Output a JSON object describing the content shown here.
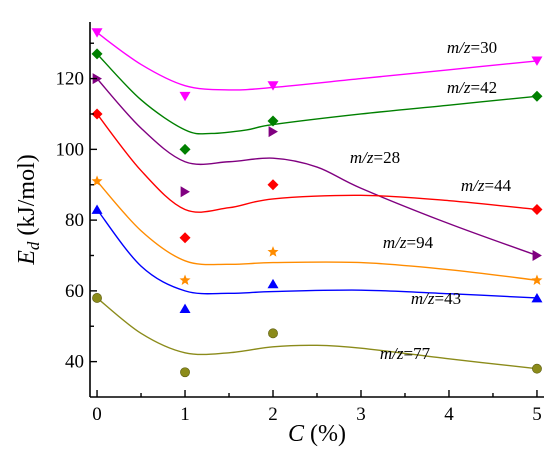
{
  "chart_data": {
    "type": "scatter",
    "xlabel_var": "C",
    "xlabel_unit": " (%)",
    "ylabel_var": "E",
    "ylabel_sub": "d",
    "ylabel_unit": "  (kJ/mol)",
    "xticks": [
      0,
      1,
      2,
      3,
      4,
      5
    ],
    "yticks": [
      40,
      60,
      80,
      100,
      120
    ],
    "xlim": [
      -0.08,
      5.08
    ],
    "ylim": [
      30,
      136
    ],
    "grid": false,
    "legend": "none",
    "x": [
      0,
      1,
      2,
      5
    ],
    "series": [
      {
        "prefix": "m/z",
        "suffix": "=30",
        "color": "#ff00ff",
        "marker": "triangle-down",
        "values": [
          133,
          115,
          118,
          125
        ],
        "fit": [
          [
            0,
            133
          ],
          [
            0.5,
            124
          ],
          [
            1,
            118
          ],
          [
            1.5,
            116.8
          ],
          [
            2,
            117.5
          ],
          [
            3,
            120
          ],
          [
            4,
            122.5
          ],
          [
            5,
            125
          ]
        ]
      },
      {
        "prefix": "m/z",
        "suffix": "=42",
        "color": "#008000",
        "marker": "diamond",
        "values": [
          127,
          100,
          108,
          115
        ],
        "fit": [
          [
            0,
            127
          ],
          [
            0.5,
            114
          ],
          [
            1,
            105.5
          ],
          [
            1.3,
            104.5
          ],
          [
            1.7,
            105.5
          ],
          [
            2,
            107
          ],
          [
            3,
            110
          ],
          [
            4,
            112.5
          ],
          [
            5,
            115
          ]
        ]
      },
      {
        "prefix": "m/z",
        "suffix": "=28",
        "color": "#800080",
        "marker": "triangle-right",
        "values": [
          120,
          88,
          105,
          70
        ],
        "fit": [
          [
            0,
            120
          ],
          [
            0.5,
            106
          ],
          [
            1,
            96.5
          ],
          [
            1.5,
            96.5
          ],
          [
            2,
            97.5
          ],
          [
            2.5,
            95
          ],
          [
            3,
            89
          ],
          [
            4,
            79
          ],
          [
            5,
            70
          ]
        ]
      },
      {
        "prefix": "m/z",
        "suffix": "=44",
        "color": "#ff0000",
        "marker": "diamond",
        "values": [
          110,
          75,
          90,
          83
        ],
        "fit": [
          [
            0,
            110
          ],
          [
            0.5,
            94
          ],
          [
            1,
            83
          ],
          [
            1.5,
            83.5
          ],
          [
            2,
            86
          ],
          [
            3,
            87
          ],
          [
            4,
            85.5
          ],
          [
            5,
            83
          ]
        ]
      },
      {
        "prefix": "m/z",
        "suffix": "=94",
        "color": "#ff8c00",
        "marker": "star",
        "values": [
          91,
          63,
          71,
          63
        ],
        "fit": [
          [
            0,
            91
          ],
          [
            0.5,
            77
          ],
          [
            1,
            68.5
          ],
          [
            1.5,
            67.5
          ],
          [
            2,
            68
          ],
          [
            3,
            68
          ],
          [
            4,
            66
          ],
          [
            5,
            63
          ]
        ]
      },
      {
        "prefix": "m/z",
        "suffix": "=43",
        "color": "#0000ff",
        "marker": "triangle-up",
        "values": [
          83,
          55,
          62,
          58
        ],
        "fit": [
          [
            0,
            83
          ],
          [
            0.5,
            67
          ],
          [
            1,
            60
          ],
          [
            1.5,
            59.3
          ],
          [
            2,
            59.8
          ],
          [
            3,
            60.2
          ],
          [
            4,
            59.2
          ],
          [
            5,
            58
          ]
        ]
      },
      {
        "prefix": "m/z",
        "suffix": "=77",
        "color": "#8b8b1a",
        "marker": "circle",
        "values": [
          58,
          37,
          48,
          38
        ],
        "fit": [
          [
            0,
            58
          ],
          [
            0.5,
            48
          ],
          [
            1,
            42.5
          ],
          [
            1.5,
            42.5
          ],
          [
            2,
            44.2
          ],
          [
            2.5,
            44.6
          ],
          [
            3,
            43.8
          ],
          [
            4,
            40.8
          ],
          [
            5,
            38
          ]
        ]
      }
    ]
  }
}
